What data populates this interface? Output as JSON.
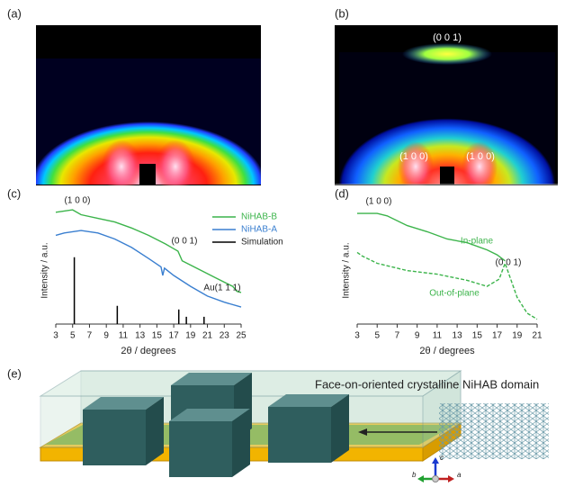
{
  "figure": {
    "labels": {
      "a": "(a)",
      "b": "(b)",
      "c": "(c)",
      "d": "(d)",
      "e": "(e)"
    },
    "panel_b": {
      "peaks": [
        "(0 0 1)",
        "(1 0 0)",
        "(1 0 0)"
      ]
    },
    "chart_c": {
      "type": "line",
      "x_label": "2θ / degrees",
      "y_label": "Intensity / a.u.",
      "xlim": [
        3,
        25
      ],
      "ylim": [
        0,
        100
      ],
      "xticks": [
        3,
        5,
        7,
        9,
        11,
        13,
        15,
        17,
        19,
        21,
        23,
        25
      ],
      "series": [
        {
          "name": "NiHAB-B",
          "color": "#3cb44b",
          "x": [
            3,
            4,
            5,
            6,
            8,
            10,
            12,
            14,
            16,
            17,
            17.5,
            18,
            20,
            22,
            24,
            24.5,
            25
          ],
          "values": [
            92,
            93,
            94,
            90,
            87,
            84,
            79,
            73,
            66,
            62,
            60,
            52,
            45,
            38,
            31,
            27,
            26
          ]
        },
        {
          "name": "NiHAB-A",
          "color": "#3a7fd0",
          "x": [
            3,
            4,
            6,
            8,
            10,
            12,
            14,
            15.5,
            15.7,
            15.9,
            17,
            19,
            21,
            23,
            25
          ],
          "values": [
            73,
            75,
            77,
            75,
            70,
            63,
            54,
            47,
            40,
            46,
            40,
            31,
            23,
            18,
            14
          ]
        },
        {
          "name": "Simulation",
          "color": "#000000",
          "style": "sticks",
          "x": [
            5.2,
            10.3,
            17.6,
            18.5,
            20.6
          ],
          "values": [
            55,
            15,
            12,
            6,
            6
          ]
        }
      ],
      "annotations": [
        "(1 0 0)",
        "(0 0 1)",
        "Au(1 1 1)"
      ]
    },
    "chart_d": {
      "type": "line",
      "x_label": "2θ / degrees",
      "y_label": "Intensity / a.u.",
      "xlim": [
        3,
        21
      ],
      "ylim": [
        0,
        100
      ],
      "xticks": [
        3,
        5,
        7,
        9,
        11,
        13,
        15,
        17,
        19,
        21
      ],
      "series": [
        {
          "name": "In-plane",
          "color": "#3cb44b",
          "style": "solid",
          "x": [
            3,
            5,
            6,
            8,
            10,
            12,
            14,
            16,
            17,
            17.8
          ],
          "values": [
            91,
            91,
            89,
            81,
            76,
            70,
            67,
            61,
            57,
            52
          ]
        },
        {
          "name": "Out-of-plane",
          "color": "#3cb44b",
          "style": "dashed",
          "x": [
            3,
            3.5,
            5,
            8,
            11,
            14,
            16,
            17.2,
            17.8,
            19,
            20,
            21
          ],
          "values": [
            59,
            56,
            50,
            44,
            41,
            36,
            31,
            37,
            50,
            22,
            9,
            4
          ]
        }
      ],
      "annotations": [
        "(1 0 0)",
        "(0 0 1)"
      ]
    },
    "panel_e": {
      "caption": "Face-on-oriented crystalline NiHAB domain",
      "axes": [
        "c",
        "b",
        "a"
      ]
    }
  }
}
